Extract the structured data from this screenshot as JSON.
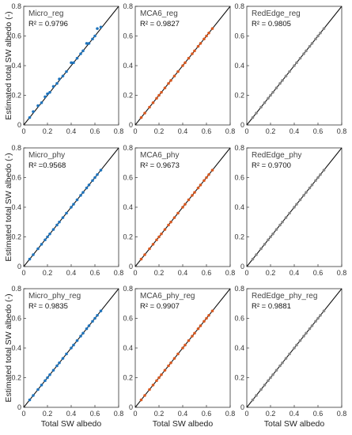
{
  "figure": {
    "shared_xlabel": "Total SW albedo",
    "shared_ylabel": "Estimated total SW albedo (-)",
    "colors": {
      "Micro": "#1f74bd",
      "MCA6": "#d9581f",
      "RedEdge": "#888888",
      "one_to_one": "#111111"
    }
  },
  "chart_data": [
    {
      "type": "scatter",
      "title": "Micro_reg",
      "r2_label": "R² = 0.9796",
      "sensor": "Micro",
      "xlabel": "",
      "ylabel": "Estimated total SW albedo (-)",
      "xlim": [
        0,
        0.8
      ],
      "ylim": [
        0,
        0.8
      ],
      "xticks": [
        "0",
        "0.2",
        "0.4",
        "0.6",
        "0.8"
      ],
      "yticks": [
        "0",
        "0.2",
        "0.4",
        "0.6",
        "0.8"
      ],
      "one_to_one_line": true,
      "grid": false,
      "x": [
        0.05,
        0.08,
        0.12,
        0.15,
        0.18,
        0.2,
        0.22,
        0.25,
        0.28,
        0.3,
        0.33,
        0.36,
        0.4,
        0.42,
        0.45,
        0.48,
        0.5,
        0.53,
        0.55,
        0.58,
        0.6,
        0.62,
        0.65
      ],
      "y": [
        0.05,
        0.09,
        0.13,
        0.15,
        0.19,
        0.21,
        0.22,
        0.26,
        0.28,
        0.31,
        0.33,
        0.36,
        0.42,
        0.42,
        0.45,
        0.48,
        0.5,
        0.55,
        0.55,
        0.58,
        0.6,
        0.65,
        0.66
      ]
    },
    {
      "type": "scatter",
      "title": "MCA6_reg",
      "r2_label": "R² = 0.9827",
      "sensor": "MCA6",
      "xlabel": "",
      "ylabel": "",
      "xlim": [
        0,
        0.8
      ],
      "ylim": [
        0,
        0.8
      ],
      "xticks": [
        "0",
        "0.2",
        "0.4",
        "0.6",
        "0.8"
      ],
      "yticks": [
        "0",
        "0.2",
        "0.4",
        "0.6",
        "0.8"
      ],
      "one_to_one_line": true,
      "grid": false,
      "x": [
        0.05,
        0.08,
        0.12,
        0.15,
        0.18,
        0.2,
        0.22,
        0.25,
        0.28,
        0.3,
        0.33,
        0.36,
        0.4,
        0.42,
        0.45,
        0.48,
        0.5,
        0.53,
        0.55,
        0.58,
        0.6,
        0.62,
        0.65
      ],
      "y": [
        0.05,
        0.08,
        0.12,
        0.15,
        0.18,
        0.2,
        0.22,
        0.25,
        0.28,
        0.3,
        0.33,
        0.36,
        0.4,
        0.42,
        0.45,
        0.48,
        0.5,
        0.53,
        0.55,
        0.58,
        0.6,
        0.62,
        0.65
      ]
    },
    {
      "type": "scatter",
      "title": "RedEdge_reg",
      "r2_label": "R² = 0.9805",
      "sensor": "RedEdge",
      "xlabel": "",
      "ylabel": "",
      "xlim": [
        0,
        0.8
      ],
      "ylim": [
        0,
        0.8
      ],
      "xticks": [
        "0",
        "0.2",
        "0.4",
        "0.6",
        "0.8"
      ],
      "yticks": [
        "0",
        "0.2",
        "0.4",
        "0.6",
        "0.8"
      ],
      "one_to_one_line": true,
      "grid": false,
      "x": [
        0.05,
        0.08,
        0.12,
        0.15,
        0.18,
        0.2,
        0.22,
        0.25,
        0.28,
        0.3,
        0.33,
        0.36,
        0.4,
        0.42,
        0.45,
        0.48,
        0.5,
        0.53,
        0.55,
        0.58,
        0.6,
        0.62,
        0.65
      ],
      "y": [
        0.05,
        0.08,
        0.12,
        0.15,
        0.18,
        0.2,
        0.22,
        0.25,
        0.28,
        0.3,
        0.33,
        0.36,
        0.4,
        0.42,
        0.45,
        0.48,
        0.5,
        0.53,
        0.55,
        0.58,
        0.6,
        0.62,
        0.65
      ]
    },
    {
      "type": "scatter",
      "title": "Micro_phy",
      "r2_label": "R² =0.9568",
      "sensor": "Micro",
      "xlabel": "",
      "ylabel": "Estimated total SW albedo (-)",
      "xlim": [
        0,
        0.8
      ],
      "ylim": [
        0,
        0.8
      ],
      "xticks": [
        "0",
        "0.2",
        "0.4",
        "0.6",
        "0.8"
      ],
      "yticks": [
        "0",
        "0.2",
        "0.4",
        "0.6",
        "0.8"
      ],
      "one_to_one_line": true,
      "grid": false,
      "x": [
        0.05,
        0.08,
        0.12,
        0.15,
        0.18,
        0.2,
        0.22,
        0.25,
        0.28,
        0.3,
        0.33,
        0.36,
        0.4,
        0.42,
        0.45,
        0.48,
        0.5,
        0.53,
        0.55,
        0.58,
        0.6,
        0.62,
        0.65
      ],
      "y": [
        0.05,
        0.08,
        0.12,
        0.15,
        0.18,
        0.2,
        0.22,
        0.25,
        0.28,
        0.3,
        0.33,
        0.36,
        0.4,
        0.42,
        0.45,
        0.48,
        0.5,
        0.53,
        0.55,
        0.58,
        0.6,
        0.62,
        0.65
      ]
    },
    {
      "type": "scatter",
      "title": "MCA6_phy",
      "r2_label": "R² = 0.9673",
      "sensor": "MCA6",
      "xlabel": "",
      "ylabel": "",
      "xlim": [
        0,
        0.8
      ],
      "ylim": [
        0,
        0.8
      ],
      "xticks": [
        "0",
        "0.2",
        "0.4",
        "0.6",
        "0.8"
      ],
      "yticks": [
        "0",
        "0.2",
        "0.4",
        "0.6",
        "0.8"
      ],
      "one_to_one_line": true,
      "grid": false,
      "x": [
        0.05,
        0.08,
        0.12,
        0.15,
        0.18,
        0.2,
        0.22,
        0.25,
        0.28,
        0.3,
        0.33,
        0.36,
        0.4,
        0.42,
        0.45,
        0.48,
        0.5,
        0.53,
        0.55,
        0.58,
        0.6,
        0.62,
        0.65
      ],
      "y": [
        0.05,
        0.08,
        0.12,
        0.15,
        0.18,
        0.2,
        0.22,
        0.25,
        0.28,
        0.3,
        0.33,
        0.36,
        0.4,
        0.42,
        0.45,
        0.48,
        0.5,
        0.53,
        0.55,
        0.58,
        0.6,
        0.62,
        0.65
      ]
    },
    {
      "type": "scatter",
      "title": "RedEdge_phy",
      "r2_label": "R² = 0.9700",
      "sensor": "RedEdge",
      "xlabel": "",
      "ylabel": "",
      "xlim": [
        0,
        0.8
      ],
      "ylim": [
        0,
        0.8
      ],
      "xticks": [
        "0",
        "0.2",
        "0.4",
        "0.6",
        "0.8"
      ],
      "yticks": [
        "0",
        "0.2",
        "0.4",
        "0.6",
        "0.8"
      ],
      "one_to_one_line": true,
      "grid": false,
      "x": [
        0.05,
        0.08,
        0.12,
        0.15,
        0.18,
        0.2,
        0.22,
        0.25,
        0.28,
        0.3,
        0.33,
        0.36,
        0.4,
        0.42,
        0.45,
        0.48,
        0.5,
        0.53,
        0.55,
        0.58,
        0.6,
        0.62,
        0.65
      ],
      "y": [
        0.05,
        0.08,
        0.12,
        0.15,
        0.18,
        0.2,
        0.22,
        0.25,
        0.28,
        0.3,
        0.33,
        0.36,
        0.4,
        0.42,
        0.45,
        0.48,
        0.5,
        0.53,
        0.55,
        0.58,
        0.6,
        0.62,
        0.65
      ]
    },
    {
      "type": "scatter",
      "title": "Micro_phy_reg",
      "r2_label": "R² = 0.9835",
      "sensor": "Micro",
      "xlabel": "Total SW albedo",
      "ylabel": "Estimated total SW albedo (-)",
      "xlim": [
        0,
        0.8
      ],
      "ylim": [
        0,
        0.8
      ],
      "xticks": [
        "0",
        "0.2",
        "0.4",
        "0.6",
        "0.8"
      ],
      "yticks": [
        "0",
        "0.2",
        "0.4",
        "0.6",
        "0.8"
      ],
      "one_to_one_line": true,
      "grid": false,
      "x": [
        0.05,
        0.08,
        0.12,
        0.15,
        0.18,
        0.2,
        0.22,
        0.25,
        0.28,
        0.3,
        0.33,
        0.36,
        0.4,
        0.42,
        0.45,
        0.48,
        0.5,
        0.53,
        0.55,
        0.58,
        0.6,
        0.62,
        0.65
      ],
      "y": [
        0.05,
        0.08,
        0.12,
        0.15,
        0.18,
        0.2,
        0.22,
        0.25,
        0.28,
        0.3,
        0.33,
        0.36,
        0.4,
        0.42,
        0.45,
        0.48,
        0.5,
        0.53,
        0.55,
        0.58,
        0.6,
        0.62,
        0.65
      ]
    },
    {
      "type": "scatter",
      "title": "MCA6_phy_reg",
      "r2_label": "R² = 0.9907",
      "sensor": "MCA6",
      "xlabel": "Total SW albedo",
      "ylabel": "",
      "xlim": [
        0,
        0.8
      ],
      "ylim": [
        0,
        0.8
      ],
      "xticks": [
        "0",
        "0.2",
        "0.4",
        "0.6",
        "0.8"
      ],
      "yticks": [
        "0",
        "0.2",
        "0.4",
        "0.6",
        "0.8"
      ],
      "one_to_one_line": true,
      "grid": false,
      "x": [
        0.05,
        0.08,
        0.12,
        0.15,
        0.18,
        0.2,
        0.22,
        0.25,
        0.28,
        0.3,
        0.33,
        0.36,
        0.4,
        0.42,
        0.45,
        0.48,
        0.5,
        0.53,
        0.55,
        0.58,
        0.6,
        0.62,
        0.65
      ],
      "y": [
        0.05,
        0.08,
        0.12,
        0.15,
        0.18,
        0.2,
        0.22,
        0.25,
        0.28,
        0.3,
        0.33,
        0.36,
        0.4,
        0.42,
        0.45,
        0.48,
        0.5,
        0.53,
        0.55,
        0.58,
        0.6,
        0.62,
        0.65
      ]
    },
    {
      "type": "scatter",
      "title": "RedEdge_phy_reg",
      "r2_label": "R² = 0.9881",
      "sensor": "RedEdge",
      "xlabel": "Total SW albedo",
      "ylabel": "",
      "xlim": [
        0,
        0.8
      ],
      "ylim": [
        0,
        0.8
      ],
      "xticks": [
        "0",
        "0.2",
        "0.4",
        "0.6",
        "0.8"
      ],
      "yticks": [
        "0",
        "0.2",
        "0.4",
        "0.6",
        "0.8"
      ],
      "one_to_one_line": true,
      "grid": false,
      "x": [
        0.05,
        0.08,
        0.12,
        0.15,
        0.18,
        0.2,
        0.22,
        0.25,
        0.28,
        0.3,
        0.33,
        0.36,
        0.4,
        0.42,
        0.45,
        0.48,
        0.5,
        0.53,
        0.55,
        0.58,
        0.6,
        0.62,
        0.65
      ],
      "y": [
        0.05,
        0.08,
        0.12,
        0.15,
        0.18,
        0.2,
        0.22,
        0.25,
        0.28,
        0.3,
        0.33,
        0.36,
        0.4,
        0.42,
        0.45,
        0.48,
        0.5,
        0.53,
        0.55,
        0.58,
        0.6,
        0.62,
        0.65
      ]
    }
  ]
}
